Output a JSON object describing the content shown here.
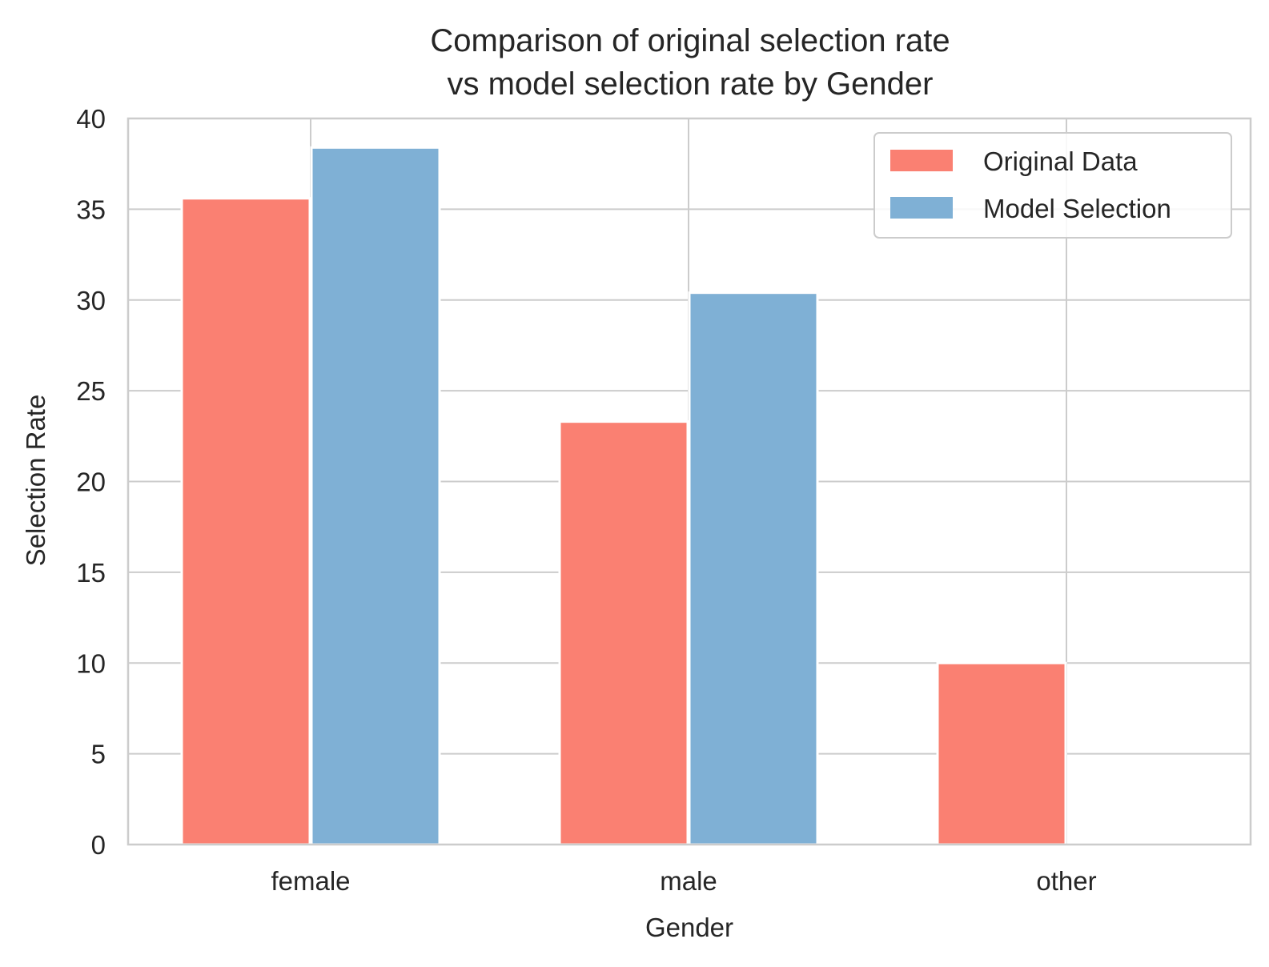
{
  "chart_data": {
    "type": "bar",
    "title_line1": "Comparison of original selection rate",
    "title_line2": "vs model selection rate by Gender",
    "xlabel": "Gender",
    "ylabel": "Selection Rate",
    "categories": [
      "female",
      "male",
      "other"
    ],
    "series": [
      {
        "name": "Original Data",
        "color": "#fa8072",
        "values": [
          35.6,
          23.3,
          10.0
        ]
      },
      {
        "name": "Model Selection",
        "color": "#7fb0d5",
        "values": [
          38.4,
          30.4,
          0
        ]
      }
    ],
    "ylim": [
      0,
      40
    ],
    "yticks": [
      "0",
      "5",
      "10",
      "15",
      "20",
      "25",
      "30",
      "35",
      "40"
    ],
    "grid": true,
    "legend_position": "top-right"
  }
}
